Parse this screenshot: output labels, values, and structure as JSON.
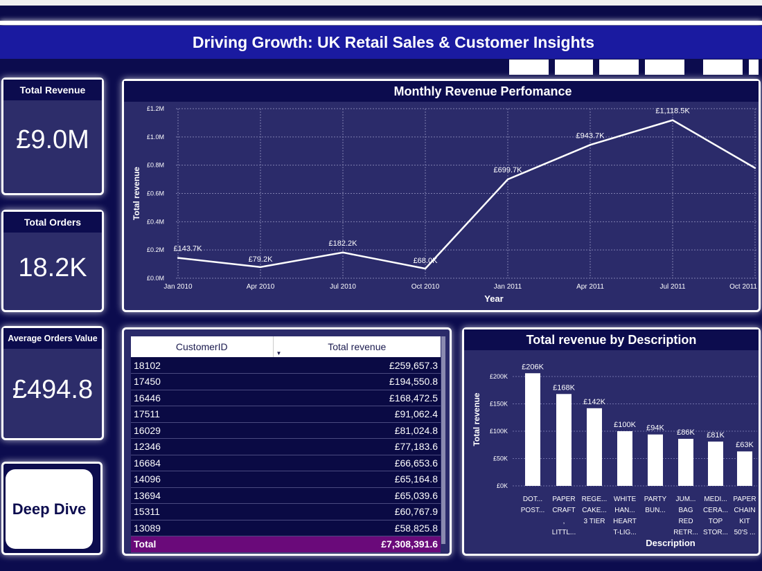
{
  "title": "Driving Growth: UK Retail Sales & Customer Insights",
  "kpis": [
    {
      "label": "Total Revenue",
      "value": "£9.0M"
    },
    {
      "label": "Total Orders",
      "value": "18.2K"
    },
    {
      "label": "Average Orders Value",
      "value": "£494.8"
    }
  ],
  "deep_dive_label": "Deep Dive",
  "table": {
    "columns": [
      "CustomerID",
      "Total revenue"
    ],
    "rows": [
      [
        "18102",
        "£259,657.3"
      ],
      [
        "17450",
        "£194,550.8"
      ],
      [
        "16446",
        "£168,472.5"
      ],
      [
        "17511",
        "£91,062.4"
      ],
      [
        "16029",
        "£81,024.8"
      ],
      [
        "12346",
        "£77,183.6"
      ],
      [
        "16684",
        "£66,653.6"
      ],
      [
        "14096",
        "£65,164.8"
      ],
      [
        "13694",
        "£65,039.6"
      ],
      [
        "15311",
        "£60,767.9"
      ],
      [
        "13089",
        "£58,825.8"
      ]
    ],
    "total_label": "Total",
    "total_value": "£7,308,391.6"
  },
  "chart_data": [
    {
      "type": "line",
      "title": "Monthly Revenue Perfomance",
      "xlabel": "Year",
      "ylabel": "Total revenue",
      "x": [
        "Jan 2010",
        "Apr 2010",
        "Jul 2010",
        "Oct 2010",
        "Jan 2011",
        "Apr 2011",
        "Jul 2011",
        "Oct 2011"
      ],
      "values": [
        143.7,
        79.2,
        182.2,
        68.0,
        699.7,
        943.7,
        1118.5,
        780
      ],
      "data_labels": [
        "£143.7K",
        "£79.2K",
        "£182.2K",
        "£68.0K",
        "£699.7K",
        "£943.7K",
        "£1,118.5K",
        ""
      ],
      "yticks": [
        "£0.0M",
        "£0.2M",
        "£0.4M",
        "£0.6M",
        "£0.8M",
        "£1.0M",
        "£1.2M"
      ],
      "ylim": [
        0,
        1200
      ],
      "grid": true,
      "line_color": "#ffffff"
    },
    {
      "type": "bar",
      "title": "Total revenue by Description",
      "xlabel": "Description",
      "ylabel": "Total revenue",
      "categories": [
        [
          "DOT...",
          "POST..."
        ],
        [
          "PAPER",
          "CRAFT",
          ",",
          "LITTL..."
        ],
        [
          "REGE...",
          "CAKE...",
          "3 TIER"
        ],
        [
          "WHITE",
          "HAN...",
          "HEART",
          "T-LIG..."
        ],
        [
          "PARTY",
          "BUN..."
        ],
        [
          "JUM...",
          "BAG",
          "RED",
          "RETR..."
        ],
        [
          "MEDI...",
          "CERA...",
          "TOP",
          "STOR..."
        ],
        [
          "PAPER",
          "CHAIN",
          "KIT",
          "50'S ..."
        ]
      ],
      "values": [
        206,
        168,
        142,
        100,
        94,
        86,
        81,
        63
      ],
      "data_labels": [
        "£206K",
        "£168K",
        "£142K",
        "£100K",
        "£94K",
        "£86K",
        "£81K",
        "£63K"
      ],
      "yticks": [
        "£0K",
        "£50K",
        "£100K",
        "£150K",
        "£200K"
      ],
      "ylim": [
        0,
        200
      ],
      "grid": true,
      "bar_color": "#ffffff"
    }
  ]
}
